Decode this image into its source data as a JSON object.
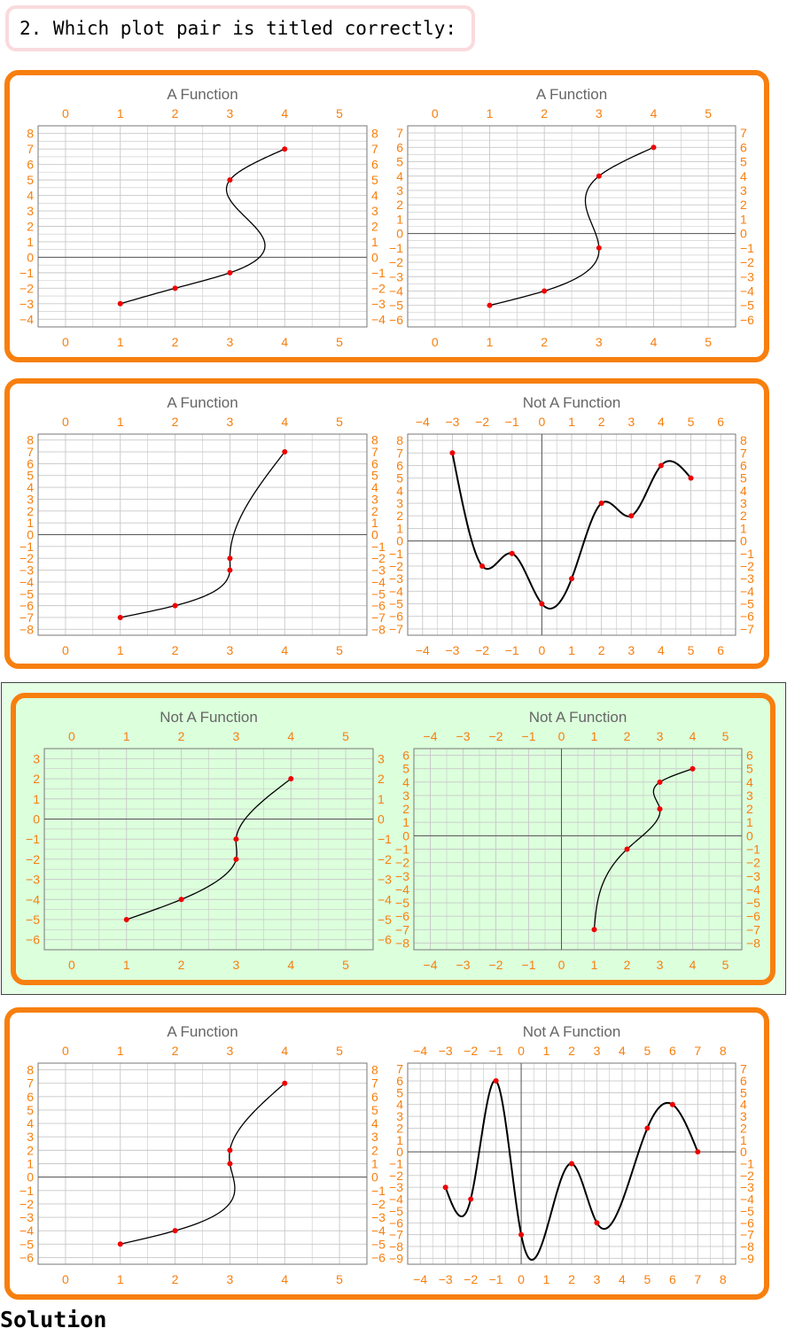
{
  "question": "2. Which plot pair is titled correctly:",
  "solution_label": "Solution",
  "colors": {
    "panel_border": "#f77f0e",
    "tick_label": "#f77f0e",
    "title": "#666666",
    "grid": "#c8c8c8",
    "curve": "#000000",
    "point": "#ee0000",
    "highlight_bg": "#e5ffe5",
    "highlight_panel_bg": "#dcffdc"
  },
  "options": [
    {
      "highlighted": false,
      "plots": [
        {
          "title": "A Function",
          "xlim": [
            -0.5,
            5.5
          ],
          "ylim": [
            -4.5,
            8.5
          ],
          "xticks": [
            0,
            1,
            2,
            3,
            4,
            5
          ],
          "yticks": [
            -4,
            -3,
            -2,
            -1,
            0,
            1,
            2,
            3,
            4,
            5,
            6,
            7,
            8
          ],
          "curve_type": "x_of_y",
          "smooth": "cubic",
          "points": [
            [
              1,
              -3
            ],
            [
              2,
              -2
            ],
            [
              3,
              -1
            ],
            [
              3,
              5
            ],
            [
              4,
              7
            ]
          ],
          "show_x_axis": true,
          "show_y_axis": false
        },
        {
          "title": "A Function",
          "xlim": [
            -0.5,
            5.5
          ],
          "ylim": [
            -6.5,
            7.5
          ],
          "xticks": [
            0,
            1,
            2,
            3,
            4,
            5
          ],
          "yticks": [
            -6,
            -5,
            -4,
            -3,
            -2,
            -1,
            0,
            1,
            2,
            3,
            4,
            5,
            6,
            7
          ],
          "curve_type": "x_of_y",
          "smooth": "cubic",
          "points": [
            [
              1,
              -5
            ],
            [
              2,
              -4
            ],
            [
              3,
              -1
            ],
            [
              3,
              4
            ],
            [
              4,
              6
            ]
          ],
          "show_x_axis": true,
          "show_y_axis": false
        }
      ]
    },
    {
      "highlighted": false,
      "plots": [
        {
          "title": "A Function",
          "xlim": [
            -0.5,
            5.5
          ],
          "ylim": [
            -8.5,
            8.5
          ],
          "xticks": [
            0,
            1,
            2,
            3,
            4,
            5
          ],
          "yticks": [
            -8,
            -7,
            -6,
            -5,
            -4,
            -3,
            -2,
            -1,
            0,
            1,
            2,
            3,
            4,
            5,
            6,
            7,
            8
          ],
          "curve_type": "x_of_y",
          "smooth": "cubic",
          "points": [
            [
              1,
              -7
            ],
            [
              2,
              -6
            ],
            [
              3,
              -3
            ],
            [
              3,
              -2
            ],
            [
              4,
              7
            ]
          ],
          "show_x_axis": true,
          "show_y_axis": false
        },
        {
          "title": "Not A Function",
          "xlim": [
            -4.5,
            6.5
          ],
          "ylim": [
            -7.5,
            8.5
          ],
          "xticks": [
            -4,
            -3,
            -2,
            -1,
            0,
            1,
            2,
            3,
            4,
            5,
            6
          ],
          "yticks": [
            -7,
            -6,
            -5,
            -4,
            -3,
            -2,
            -1,
            0,
            1,
            2,
            3,
            4,
            5,
            6,
            7,
            8
          ],
          "curve_type": "y_of_x",
          "smooth": "catmull",
          "points": [
            [
              -3,
              7
            ],
            [
              -2,
              -2
            ],
            [
              -1,
              -1
            ],
            [
              0,
              -5
            ],
            [
              1,
              -3
            ],
            [
              2,
              3
            ],
            [
              3,
              2
            ],
            [
              4,
              6
            ],
            [
              5,
              5
            ]
          ],
          "show_x_axis": true,
          "show_y_axis": true
        }
      ]
    },
    {
      "highlighted": true,
      "plots": [
        {
          "title": "Not A Function",
          "xlim": [
            -0.5,
            5.5
          ],
          "ylim": [
            -6.5,
            3.5
          ],
          "xticks": [
            0,
            1,
            2,
            3,
            4,
            5
          ],
          "yticks": [
            -6,
            -5,
            -4,
            -3,
            -2,
            -1,
            0,
            1,
            2,
            3
          ],
          "curve_type": "x_of_y",
          "smooth": "cubic",
          "points": [
            [
              1,
              -5
            ],
            [
              2,
              -4
            ],
            [
              3,
              -2
            ],
            [
              3,
              -1
            ],
            [
              4,
              2
            ]
          ],
          "show_x_axis": true,
          "show_y_axis": false
        },
        {
          "title": "Not A Function",
          "xlim": [
            -4.5,
            5.5
          ],
          "ylim": [
            -8.5,
            6.5
          ],
          "xticks": [
            -4,
            -3,
            -2,
            -1,
            0,
            1,
            2,
            3,
            4,
            5
          ],
          "yticks": [
            -8,
            -7,
            -6,
            -5,
            -4,
            -3,
            -2,
            -1,
            0,
            1,
            2,
            3,
            4,
            5,
            6
          ],
          "curve_type": "x_of_y",
          "smooth": "cubic",
          "points": [
            [
              1,
              -7
            ],
            [
              2,
              -1
            ],
            [
              3,
              2
            ],
            [
              3,
              4
            ],
            [
              4,
              5
            ]
          ],
          "show_x_axis": true,
          "show_y_axis": true
        }
      ]
    },
    {
      "highlighted": false,
      "plots": [
        {
          "title": "A Function",
          "xlim": [
            -0.5,
            5.5
          ],
          "ylim": [
            -6.5,
            8.5
          ],
          "xticks": [
            0,
            1,
            2,
            3,
            4,
            5
          ],
          "yticks": [
            -6,
            -5,
            -4,
            -3,
            -2,
            -1,
            0,
            1,
            2,
            3,
            4,
            5,
            6,
            7,
            8
          ],
          "curve_type": "x_of_y",
          "smooth": "cubic",
          "points": [
            [
              1,
              -5
            ],
            [
              2,
              -4
            ],
            [
              3,
              1
            ],
            [
              3,
              2
            ],
            [
              4,
              7
            ]
          ],
          "show_x_axis": true,
          "show_y_axis": false
        },
        {
          "title": "Not A Function",
          "xlim": [
            -4.5,
            8.5
          ],
          "ylim": [
            -9.5,
            7.5
          ],
          "xticks": [
            -4,
            -3,
            -2,
            -1,
            0,
            1,
            2,
            3,
            4,
            5,
            6,
            7,
            8
          ],
          "yticks": [
            -9,
            -8,
            -7,
            -6,
            -5,
            -4,
            -3,
            -2,
            -1,
            0,
            1,
            2,
            3,
            4,
            5,
            6,
            7
          ],
          "curve_type": "y_of_x",
          "smooth": "catmull",
          "points": [
            [
              -3,
              -3
            ],
            [
              -2,
              -4
            ],
            [
              -1,
              6
            ],
            [
              0,
              -7
            ],
            [
              2,
              -1
            ],
            [
              3,
              -6
            ],
            [
              5,
              2
            ],
            [
              6,
              4
            ],
            [
              7,
              0
            ]
          ],
          "show_x_axis": true,
          "show_y_axis": true
        }
      ]
    }
  ]
}
